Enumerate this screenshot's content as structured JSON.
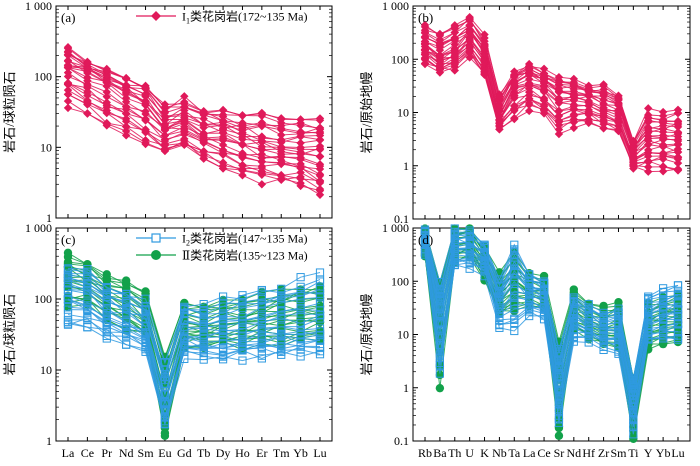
{
  "colors": {
    "pink": "#e0195a",
    "blue": "#2f9ae0",
    "green": "#12a14a",
    "axis": "#000000"
  },
  "chart_data": [
    {
      "panel": "(a)",
      "type": "line",
      "yscale": "log",
      "ylim": [
        1,
        1000
      ],
      "ylabel": "岩石/球粒陨石",
      "y_ticks": [
        "1",
        "10",
        "100",
        "1 000"
      ],
      "categories": [
        "La",
        "Ce",
        "Pr",
        "Nd",
        "Sm",
        "Eu",
        "Gd",
        "Tb",
        "Dy",
        "Ho",
        "Er",
        "Tm",
        "Yb",
        "Lu"
      ],
      "legend": [
        {
          "label_main": "I",
          "label_sub": "1",
          "label_rest": "类花岗岩(172~135 Ma)",
          "color": "pink",
          "marker": "diamond"
        }
      ],
      "series_group": {
        "color": "pink",
        "marker": "diamond",
        "upper": [
          240,
          180,
          130,
          100,
          80,
          38,
          48,
          36,
          34,
          30,
          28,
          26,
          25,
          26
        ],
        "typical": [
          140,
          110,
          75,
          55,
          38,
          18,
          22,
          16,
          14,
          12,
          10,
          9,
          8.5,
          8
        ],
        "lower": [
          40,
          28,
          20,
          15,
          12,
          8,
          10,
          7,
          5,
          4,
          3.5,
          3.5,
          3,
          2.2
        ],
        "count": 26
      }
    },
    {
      "panel": "(b)",
      "type": "line",
      "yscale": "log",
      "ylim": [
        0.1,
        1000
      ],
      "ylabel": "岩石/原始地幔",
      "y_ticks": [
        "0.1",
        "1",
        "10",
        "100",
        "1 000"
      ],
      "categories": [
        "Rb",
        "Ba",
        "Th",
        "U",
        "K",
        "Nb",
        "Ta",
        "La",
        "Ce",
        "Sr",
        "Nd",
        "Hf",
        "Zr",
        "Sm",
        "Ti",
        "Y",
        "Yb",
        "Lu"
      ],
      "series_group": {
        "color": "pink",
        "marker": "diamond",
        "upper": [
          430,
          300,
          400,
          650,
          280,
          22,
          60,
          80,
          60,
          45,
          40,
          35,
          30,
          22,
          3,
          11,
          9,
          10
        ],
        "typical": [
          180,
          110,
          150,
          280,
          110,
          9,
          30,
          40,
          30,
          18,
          18,
          16,
          13,
          10,
          1.6,
          3,
          3,
          3
        ],
        "lower": [
          90,
          60,
          70,
          110,
          50,
          5,
          8,
          12,
          10,
          4,
          6,
          7,
          5,
          4,
          0.9,
          0.9,
          0.9,
          0.8
        ],
        "count": 26
      }
    },
    {
      "panel": "(c)",
      "type": "line",
      "yscale": "log",
      "ylim": [
        1,
        1000
      ],
      "ylabel": "岩石/球粒陨石",
      "y_ticks": [
        "1",
        "10",
        "100",
        "1 000"
      ],
      "x_ticks": [
        "La",
        "Ce",
        "Pr",
        "Nd",
        "Sm",
        "Eu",
        "Gd",
        "Tb",
        "Dy",
        "Ho",
        "Er",
        "Tm",
        "Yb",
        "Lu"
      ],
      "categories": [
        "La",
        "Ce",
        "Pr",
        "Nd",
        "Sm",
        "Eu",
        "Gd",
        "Tb",
        "Dy",
        "Ho",
        "Er",
        "Tm",
        "Yb",
        "Lu"
      ],
      "legend": [
        {
          "label_main": "I",
          "label_sub": "2",
          "label_rest": "类花岗岩(147~135 Ma)",
          "color": "blue",
          "marker": "square"
        },
        {
          "label_main": "Ⅱ",
          "label_sub": "",
          "label_rest": "类花岗岩(135~123 Ma)",
          "color": "green",
          "marker": "circle"
        }
      ],
      "series_groups": [
        {
          "color": "green",
          "marker": "circle",
          "upper": [
            400,
            320,
            220,
            190,
            130,
            16,
            95,
            85,
            95,
            100,
            110,
            120,
            130,
            140
          ],
          "typical": [
            200,
            170,
            110,
            85,
            55,
            5,
            40,
            38,
            42,
            45,
            50,
            55,
            60,
            62
          ],
          "lower": [
            90,
            80,
            55,
            40,
            30,
            1.1,
            22,
            20,
            22,
            22,
            24,
            25,
            25,
            27
          ],
          "count": 20
        },
        {
          "color": "blue",
          "marker": "square",
          "upper": [
            300,
            250,
            150,
            120,
            90,
            12,
            90,
            80,
            95,
            110,
            130,
            160,
            200,
            250
          ],
          "typical": [
            130,
            105,
            65,
            50,
            35,
            4,
            30,
            28,
            30,
            32,
            35,
            38,
            40,
            42
          ],
          "lower": [
            40,
            40,
            30,
            24,
            20,
            1.5,
            16,
            15,
            15,
            15,
            15,
            16,
            16,
            16
          ],
          "count": 22
        }
      ]
    },
    {
      "panel": "(d)",
      "type": "line",
      "yscale": "log",
      "ylim": [
        0.1,
        1000
      ],
      "ylabel": "岩石/原始地幔",
      "y_ticks": [
        "0.1",
        "1",
        "10",
        "100",
        "1 000"
      ],
      "x_ticks": [
        "Rb",
        "Ba",
        "Th",
        "U",
        "K",
        "Nb",
        "Ta",
        "La",
        "Ce",
        "Sr",
        "Nd",
        "Hf",
        "Zr",
        "Sm",
        "Ti",
        "Y",
        "Yb",
        "Lu"
      ],
      "categories": [
        "Rb",
        "Ba",
        "Th",
        "U",
        "K",
        "Nb",
        "Ta",
        "La",
        "Ce",
        "Sr",
        "Nd",
        "Hf",
        "Zr",
        "Sm",
        "Ti",
        "Y",
        "Yb",
        "Lu"
      ],
      "series_groups": [
        {
          "color": "green",
          "marker": "circle",
          "upper": [
            950,
            110,
            1000,
            1100,
            420,
            130,
            300,
            140,
            110,
            7,
            65,
            40,
            30,
            42,
            1.6,
            35,
            45,
            50
          ],
          "typical": [
            500,
            25,
            500,
            550,
            200,
            45,
            90,
            65,
            55,
            1.5,
            28,
            18,
            13,
            14,
            0.5,
            14,
            18,
            20
          ],
          "lower": [
            300,
            1.1,
            250,
            280,
            110,
            25,
            30,
            35,
            30,
            0.12,
            12,
            9,
            7,
            6,
            0.1,
            6,
            7,
            7
          ],
          "count": 20
        },
        {
          "color": "blue",
          "marker": "square",
          "upper": [
            1000,
            90,
            900,
            800,
            500,
            110,
            450,
            130,
            100,
            6,
            55,
            35,
            25,
            30,
            1.5,
            55,
            70,
            80
          ],
          "typical": [
            600,
            20,
            450,
            450,
            250,
            40,
            120,
            60,
            50,
            1.2,
            25,
            16,
            12,
            13,
            0.6,
            20,
            25,
            28
          ],
          "lower": [
            350,
            2,
            200,
            200,
            140,
            12,
            12,
            25,
            20,
            0.2,
            8,
            8,
            6,
            5,
            0.15,
            7,
            8,
            9
          ],
          "count": 22
        }
      ]
    }
  ]
}
